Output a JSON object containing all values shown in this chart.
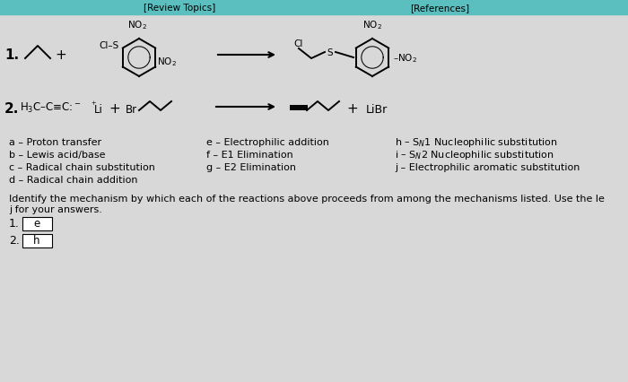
{
  "bg_color": "#d8d8d8",
  "header_bar_color": "#5bbfbf",
  "header_text": "[Review Topics]",
  "header_text2": "[References]",
  "mech_rows": [
    [
      "a ≡ Proton transfer",
      "e ≡ Electrophilic addition",
      "h ≡ S_N1 Nucleophilic substitution"
    ],
    [
      "b ≡ Lewis acid/base",
      "f ≡ E1 Elimination",
      "i ≡ S_N2 Nucleophilic substitution"
    ],
    [
      "c ≡ Radical chain substitution",
      "g ≡ E2 Elimination",
      "j ≡ Electrophilic aromatic substitution"
    ],
    [
      "d ≡ Radical chain addition",
      "",
      ""
    ]
  ],
  "identify_line1": "Identify the mechanism by which each of the reactions above proceeds from among the mechanisms listed. Use the le",
  "identify_line2": "j for your answers.",
  "answer1": "e",
  "answer2": "h"
}
